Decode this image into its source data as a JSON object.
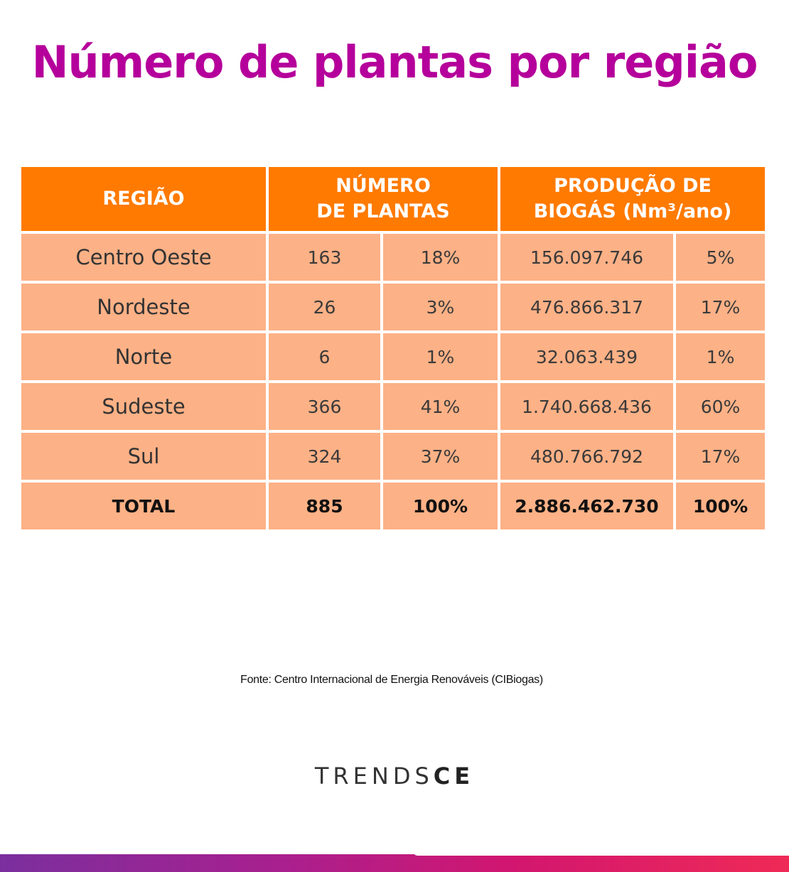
{
  "title": "Número de plantas por região",
  "table": {
    "headers": {
      "region": "REGIÃO",
      "plants_line1": "NÚMERO",
      "plants_line2": "DE PLANTAS",
      "biogas_line1": "PRODUÇÃO DE",
      "biogas_line2": "BIOGÁS (Nm³/ano)"
    },
    "rows": [
      {
        "region": "Centro Oeste",
        "plants": "163",
        "plants_pct": "18%",
        "biogas": "156.097.746",
        "biogas_pct": "5%"
      },
      {
        "region": "Nordeste",
        "plants": "26",
        "plants_pct": "3%",
        "biogas": "476.866.317",
        "biogas_pct": "17%"
      },
      {
        "region": "Norte",
        "plants": "6",
        "plants_pct": "1%",
        "biogas": "32.063.439",
        "biogas_pct": "1%"
      },
      {
        "region": "Sudeste",
        "plants": "366",
        "plants_pct": "41%",
        "biogas": "1.740.668.436",
        "biogas_pct": "60%"
      },
      {
        "region": "Sul",
        "plants": "324",
        "plants_pct": "37%",
        "biogas": "480.766.792",
        "biogas_pct": "17%"
      }
    ],
    "total": {
      "region": "TOTAL",
      "plants": "885",
      "plants_pct": "100%",
      "biogas": "2.886.462.730",
      "biogas_pct": "100%"
    }
  },
  "source": "Fonte: Centro Internacional de Energia Renováveis (CIBiogas)",
  "logo": {
    "light": "TRENDS",
    "bold": "CE"
  },
  "colors": {
    "title": "#b5009b",
    "header_bg": "#ff7a00",
    "cell_bg": "#fdb186"
  }
}
